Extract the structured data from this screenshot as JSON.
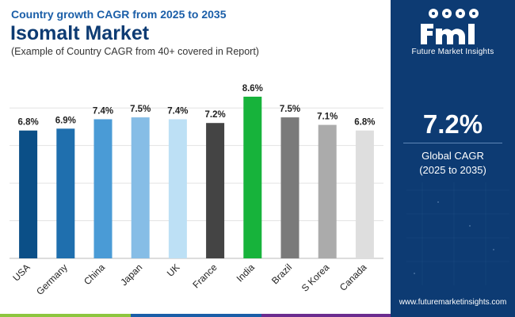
{
  "header": {
    "subtitle": "Country growth CAGR from 2025 to 2035",
    "title": "Isomalt Market",
    "note": "(Example of Country CAGR from 40+ covered in Report)"
  },
  "chart_data": {
    "type": "bar",
    "title": "Isomalt Market",
    "categories": [
      "USA",
      "Germany",
      "China",
      "Japan",
      "UK",
      "France",
      "India",
      "Brazil",
      "S Korea",
      "Canada"
    ],
    "values": [
      6.8,
      6.9,
      7.4,
      7.5,
      7.4,
      7.2,
      8.6,
      7.5,
      7.1,
      6.8
    ],
    "value_labels": [
      "6.8%",
      "6.9%",
      "7.4%",
      "7.5%",
      "7.4%",
      "7.2%",
      "8.6%",
      "7.5%",
      "7.1%",
      "6.8%"
    ],
    "bar_colors": [
      "#0b4f87",
      "#1f6fae",
      "#4a9bd6",
      "#86bde6",
      "#bde0f5",
      "#444444",
      "#17b33b",
      "#7a7a7a",
      "#ababab",
      "#dedede"
    ],
    "ylim": [
      0,
      9
    ],
    "xlabel": "",
    "ylabel": "",
    "grid": true,
    "legend": "none"
  },
  "side_panel": {
    "logo_text": "Future Market Insights",
    "value": "7.2%",
    "label_line1": "Global CAGR",
    "label_line2": "(2025 to 2035)",
    "url": "www.futuremarketinsights.com"
  },
  "colors": {
    "panel_bg": "#0d3b73",
    "title": "#0d3b73",
    "subtitle": "#1a5ea8",
    "strip": [
      "#8dc63f",
      "#1a5ea8",
      "#6b2c8f",
      "#0d3b73"
    ]
  }
}
